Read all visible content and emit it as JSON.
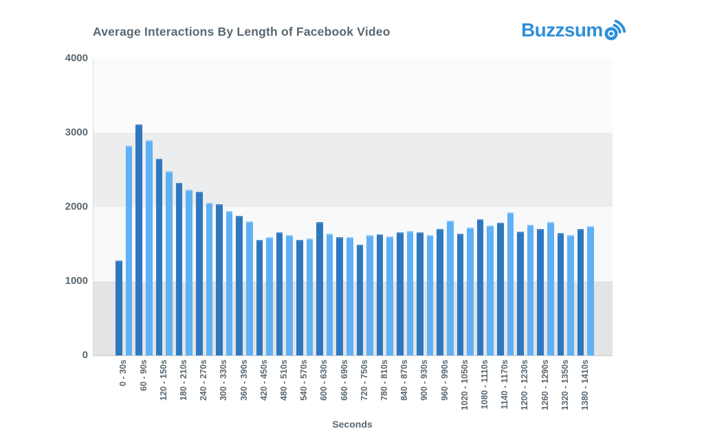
{
  "header": {
    "title": "Average Interactions By Length of Facebook Video",
    "logo_text": "Buzzsum",
    "logo_brand": "BuzzSumo"
  },
  "chart_data": {
    "type": "bar",
    "title": "Average Interactions By Length of Facebook Video",
    "xlabel": "Seconds",
    "ylabel": "",
    "ylim": [
      0,
      4000
    ],
    "yticks": [
      0,
      1000,
      2000,
      3000,
      4000
    ],
    "legend": "none",
    "grid": "alternating horizontal background bands, no gridlines",
    "layout_note": "48 bars alternating dark/light blue; each x label sits centered beneath one dark+light pair of 30s buckets",
    "categories": [
      "0 - 30s",
      "60 - 90s",
      "120 - 150s",
      "180 - 210s",
      "240 - 270s",
      "300 - 330s",
      "360 - 390s",
      "420 - 450s",
      "480 - 510s",
      "540 - 570s",
      "600 - 630s",
      "660 - 690s",
      "720 - 750s",
      "780 - 810s",
      "840 - 870s",
      "900 - 930s",
      "960 - 990s",
      "1020 - 1050s",
      "1080 - 1110s",
      "1140 - 1170s",
      "1200 - 1230s",
      "1260 - 1290s",
      "1320 - 1350s",
      "1380 - 1410s"
    ],
    "series": [
      {
        "name": "labeled interval (dark blue)",
        "color": "#2f78c0",
        "values": [
          1275,
          3110,
          2645,
          2320,
          2200,
          2035,
          1880,
          1560,
          1660,
          1555,
          1795,
          1590,
          1495,
          1630,
          1660,
          1660,
          1700,
          1640,
          1830,
          1790,
          1665,
          1705,
          1645,
          1705
        ]
      },
      {
        "name": "following unlabeled interval (light blue)",
        "color": "#5fb0f5",
        "values": [
          2820,
          2895,
          2480,
          2235,
          2055,
          1945,
          1810,
          1595,
          1620,
          1570,
          1635,
          1595,
          1625,
          1600,
          1680,
          1625,
          1815,
          1725,
          1750,
          1930,
          1760,
          1795,
          1620,
          1740
        ]
      }
    ]
  },
  "colors": {
    "bar_dark": "#2f78c0",
    "bar_light": "#5fb0f5",
    "title_text": "#5b6770",
    "axis_text": "#5b6770",
    "logo_blue": "#2e8fd8",
    "plot_bands_top_to_bottom": [
      "#fbfbfb",
      "#ebedee",
      "#f8f9fa",
      "#e2e4e6"
    ],
    "axis_line": "#d8dbdd"
  }
}
